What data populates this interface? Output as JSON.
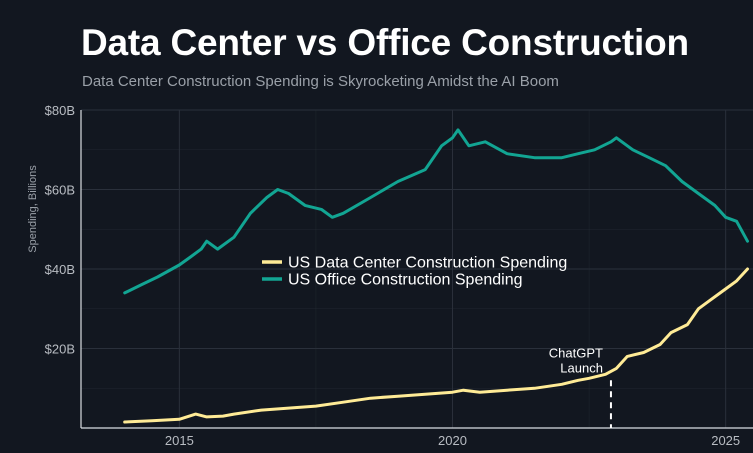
{
  "header": {
    "title": "Data Center vs Office Construction",
    "subtitle": "Data Center Construction Spending is Skyrocketing Amidst the AI Boom"
  },
  "colors": {
    "background": "#121720",
    "grid": "#2a303b",
    "axis": "#d9dde2",
    "data_center": "#ffeb96",
    "office": "#12a593"
  },
  "chart_data": {
    "type": "line",
    "ylabel": "Spending, Billions",
    "xlabel": "",
    "xlim": [
      2013.2,
      2025.5
    ],
    "ylim": [
      0,
      80
    ],
    "x_ticks": [
      {
        "value": 2015,
        "label": "2015"
      },
      {
        "value": 2020,
        "label": "2020"
      },
      {
        "value": 2025,
        "label": "2025"
      }
    ],
    "y_ticks": [
      {
        "value": 20,
        "label": "$20B"
      },
      {
        "value": 40,
        "label": "$40B"
      },
      {
        "value": 60,
        "label": "$60B"
      },
      {
        "value": 80,
        "label": "$80B"
      }
    ],
    "grid": true,
    "legend_position": "center",
    "series": [
      {
        "name": "US Data Center Construction Spending",
        "color": "#ffeb96",
        "x": [
          2014.0,
          2014.5,
          2015.0,
          2015.3,
          2015.5,
          2015.8,
          2016.0,
          2016.5,
          2017.0,
          2017.5,
          2018.0,
          2018.5,
          2019.0,
          2019.5,
          2020.0,
          2020.2,
          2020.5,
          2021.0,
          2021.5,
          2022.0,
          2022.3,
          2022.5,
          2022.8,
          2023.0,
          2023.2,
          2023.5,
          2023.8,
          2024.0,
          2024.3,
          2024.5,
          2024.7,
          2024.9,
          2025.0,
          2025.2,
          2025.4
        ],
        "y": [
          1.5,
          1.8,
          2.2,
          3.5,
          2.8,
          3.0,
          3.5,
          4.5,
          5.0,
          5.5,
          6.5,
          7.5,
          8.0,
          8.5,
          9.0,
          9.5,
          9.0,
          9.5,
          10.0,
          11.0,
          12.0,
          12.5,
          13.5,
          15.0,
          18.0,
          19.0,
          21.0,
          24.0,
          26.0,
          30.0,
          32.0,
          34.0,
          35.0,
          37.0,
          40.0
        ]
      },
      {
        "name": "US Office Construction Spending",
        "color": "#12a593",
        "x": [
          2014.0,
          2014.3,
          2014.6,
          2015.0,
          2015.2,
          2015.4,
          2015.5,
          2015.7,
          2016.0,
          2016.3,
          2016.6,
          2016.8,
          2017.0,
          2017.3,
          2017.6,
          2017.8,
          2018.0,
          2018.5,
          2019.0,
          2019.5,
          2019.8,
          2020.0,
          2020.1,
          2020.3,
          2020.6,
          2021.0,
          2021.5,
          2022.0,
          2022.3,
          2022.6,
          2022.9,
          2023.0,
          2023.3,
          2023.6,
          2023.9,
          2024.2,
          2024.5,
          2024.8,
          2025.0,
          2025.2,
          2025.4
        ],
        "y": [
          34,
          36,
          38,
          41,
          43,
          45,
          47,
          45,
          48,
          54,
          58,
          60,
          59,
          56,
          55,
          53,
          54,
          58,
          62,
          65,
          71,
          73,
          75,
          71,
          72,
          69,
          68,
          68,
          69,
          70,
          72,
          73,
          70,
          68,
          66,
          62,
          59,
          56,
          53,
          52,
          47
        ]
      }
    ],
    "annotations": [
      {
        "label_lines": [
          "ChatGPT",
          "Launch"
        ],
        "x": 2022.9
      }
    ]
  }
}
